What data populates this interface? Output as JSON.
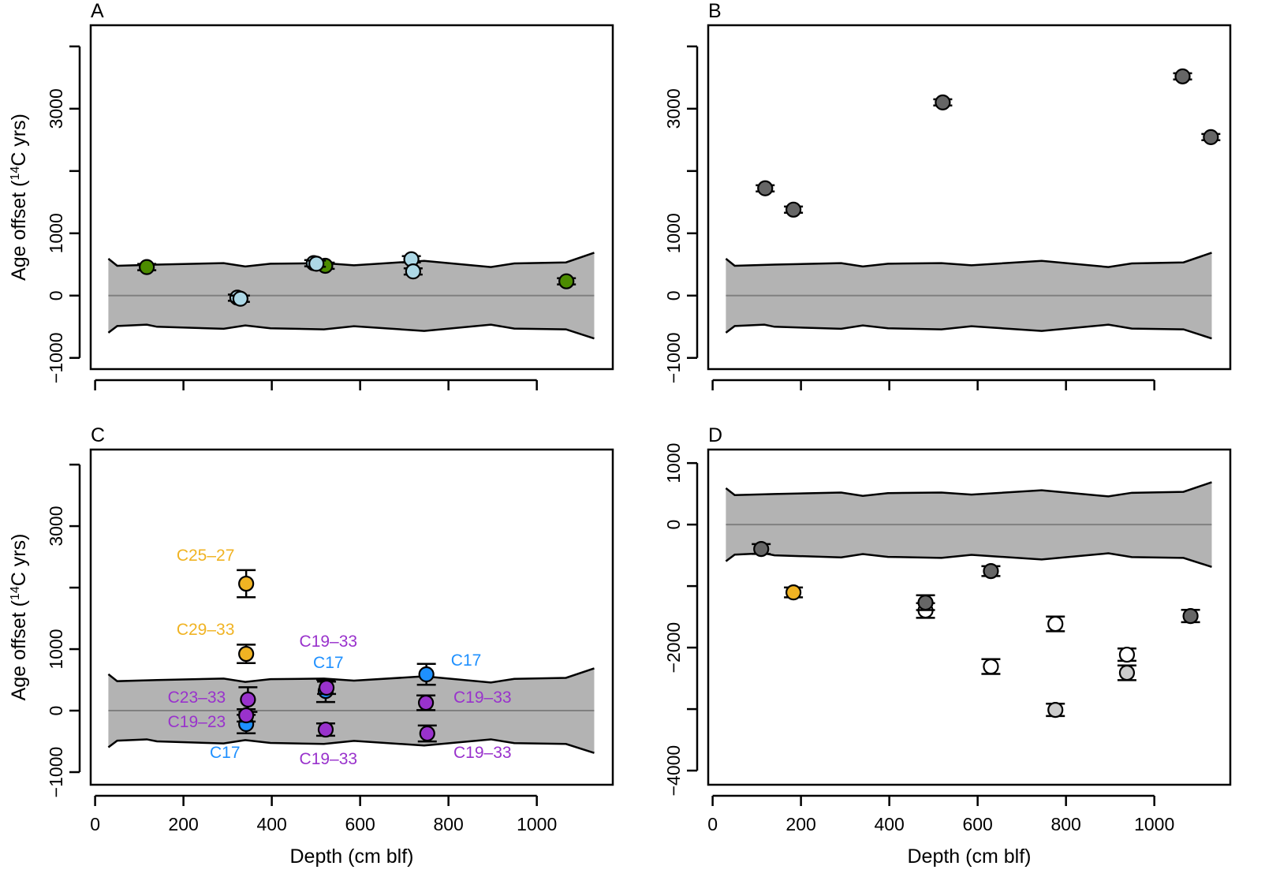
{
  "common": {
    "xlabel": "Depth (cm blf)",
    "ylabel_pre": "Age offset (",
    "ylabel_sup": "14",
    "ylabel_post": "C yrs)",
    "band_fill": "#b3b3b3",
    "zero_line_color": "#808080"
  },
  "reference_band": {
    "depth": [
      30,
      50,
      117,
      140,
      291,
      340,
      397,
      518,
      586,
      745,
      896,
      949,
      1066,
      1130
    ],
    "upper": [
      592,
      479,
      492,
      497,
      521,
      467,
      512,
      521,
      487,
      558,
      458,
      517,
      533,
      688
    ],
    "lower": [
      -596,
      -488,
      -467,
      -500,
      -533,
      -479,
      -525,
      -542,
      -492,
      -567,
      -467,
      -529,
      -542,
      -688
    ]
  },
  "chart_data": [
    {
      "panel": "A",
      "type": "scatter",
      "xlim": [
        -10,
        1172
      ],
      "ylim": [
        -1180,
        4340
      ],
      "xticks": [
        0,
        200,
        400,
        600,
        800,
        1000
      ],
      "xtick_labels": false,
      "yticks": [
        -1000,
        0,
        1000,
        2000,
        3000,
        4000
      ],
      "ytick_labels": {
        "-1000": "−1000",
        "0": "0",
        "1000": "1000",
        "3000": "3000"
      },
      "points": [
        {
          "depth": 117,
          "offset": 458,
          "err": 50,
          "color": "#4c8c00"
        },
        {
          "depth": 322,
          "offset": -33,
          "err": 50,
          "color": "#add8e6"
        },
        {
          "depth": 329,
          "offset": -50,
          "err": 50,
          "color": "#add8e6"
        },
        {
          "depth": 495,
          "offset": 521,
          "err": 50,
          "color": "#add8e6"
        },
        {
          "depth": 521,
          "offset": 479,
          "err": 50,
          "color": "#4c8c00"
        },
        {
          "depth": 501,
          "offset": 512,
          "err": 50,
          "color": "#add8e6"
        },
        {
          "depth": 716,
          "offset": 583,
          "err": 50,
          "color": "#add8e6"
        },
        {
          "depth": 720,
          "offset": 388,
          "err": 50,
          "color": "#add8e6"
        },
        {
          "depth": 1067,
          "offset": 229,
          "err": 50,
          "color": "#4c8c00"
        }
      ],
      "annotations": []
    },
    {
      "panel": "B",
      "type": "scatter",
      "xlim": [
        -10,
        1172
      ],
      "ylim": [
        -1180,
        4340
      ],
      "xticks": [
        0,
        200,
        400,
        600,
        800,
        1000
      ],
      "xtick_labels": false,
      "yticks": [
        -1000,
        0,
        1000,
        2000,
        3000,
        4000
      ],
      "ytick_labels": {
        "-1000": "−1000",
        "0": "0",
        "1000": "1000",
        "3000": "3000"
      },
      "points": [
        {
          "depth": 119,
          "offset": 1722,
          "err": 50,
          "color": "#666666"
        },
        {
          "depth": 183,
          "offset": 1380,
          "err": 50,
          "color": "#666666"
        },
        {
          "depth": 521,
          "offset": 3101,
          "err": 50,
          "color": "#666666"
        },
        {
          "depth": 1064,
          "offset": 3519,
          "err": 50,
          "color": "#666666"
        },
        {
          "depth": 1128,
          "offset": 2544,
          "err": 50,
          "color": "#666666"
        }
      ],
      "annotations": []
    },
    {
      "panel": "C",
      "type": "scatter",
      "xlim": [
        -10,
        1172
      ],
      "ylim": [
        -1205,
        4245
      ],
      "xticks": [
        0,
        200,
        400,
        600,
        800,
        1000
      ],
      "xtick_labels": true,
      "yticks": [
        -1000,
        0,
        1000,
        2000,
        3000,
        4000
      ],
      "ytick_labels": {
        "-1000": "−1000",
        "0": "0",
        "1000": "1000",
        "3000": "3000"
      },
      "points": [
        {
          "depth": 342,
          "offset": 2064,
          "err": 220,
          "color": "#f0b323"
        },
        {
          "depth": 342,
          "offset": 923,
          "err": 150,
          "color": "#f0b323"
        },
        {
          "depth": 342,
          "offset": -218,
          "err": 150,
          "color": "#1e90ff"
        },
        {
          "depth": 346,
          "offset": 180,
          "err": 200,
          "color": "#9932cc"
        },
        {
          "depth": 342,
          "offset": -77,
          "err": 100,
          "color": "#9932cc"
        },
        {
          "depth": 522,
          "offset": 320,
          "err": 180,
          "color": "#1e90ff"
        },
        {
          "depth": 524,
          "offset": 372,
          "err": 100,
          "color": "#9932cc"
        },
        {
          "depth": 522,
          "offset": -308,
          "err": 100,
          "color": "#9932cc"
        },
        {
          "depth": 750,
          "offset": 590,
          "err": 170,
          "color": "#1e90ff"
        },
        {
          "depth": 749,
          "offset": 128,
          "err": 120,
          "color": "#9932cc"
        },
        {
          "depth": 752,
          "offset": -372,
          "err": 130,
          "color": "#9932cc"
        }
      ],
      "annotations": [
        {
          "text": "C25–27",
          "depth": 250,
          "offset": 2538,
          "color": "#f0b323"
        },
        {
          "text": "C29–33",
          "depth": 250,
          "offset": 1333,
          "color": "#f0b323"
        },
        {
          "text": "C19–33",
          "depth": 528,
          "offset": 1141,
          "color": "#9932cc"
        },
        {
          "text": "C17",
          "depth": 528,
          "offset": 795,
          "color": "#1e90ff"
        },
        {
          "text": "C17",
          "depth": 840,
          "offset": 833,
          "color": "#1e90ff"
        },
        {
          "text": "C23–33",
          "depth": 230,
          "offset": 231,
          "color": "#9932cc"
        },
        {
          "text": "C19–33",
          "depth": 877,
          "offset": 231,
          "color": "#9932cc"
        },
        {
          "text": "C19–23",
          "depth": 230,
          "offset": -167,
          "color": "#9932cc"
        },
        {
          "text": "C17",
          "depth": 294,
          "offset": -667,
          "color": "#1e90ff"
        },
        {
          "text": "C19–33",
          "depth": 528,
          "offset": -769,
          "color": "#9932cc"
        },
        {
          "text": "C19–33",
          "depth": 877,
          "offset": -667,
          "color": "#9932cc"
        }
      ]
    },
    {
      "panel": "D",
      "type": "scatter",
      "xlim": [
        -10,
        1172
      ],
      "ylim": [
        -4230,
        1220
      ],
      "xticks": [
        0,
        200,
        400,
        600,
        800,
        1000
      ],
      "xtick_labels": true,
      "yticks": [
        -4000,
        -3000,
        -2000,
        -1000,
        0,
        1000
      ],
      "ytick_labels": {
        "-4000": "−4000",
        "-2000": "−2000",
        "0": "0",
        "1000": "1000"
      },
      "points": [
        {
          "depth": 110,
          "offset": -397,
          "err": 80,
          "color": "#666666"
        },
        {
          "depth": 183,
          "offset": -1103,
          "err": 80,
          "color": "#f0b323"
        },
        {
          "depth": 482,
          "offset": -1397,
          "err": 120,
          "color": "#ffffff"
        },
        {
          "depth": 482,
          "offset": -1269,
          "err": 120,
          "color": "#666666"
        },
        {
          "depth": 630,
          "offset": -756,
          "err": 80,
          "color": "#666666"
        },
        {
          "depth": 630,
          "offset": -2308,
          "err": 120,
          "color": "#ffffff"
        },
        {
          "depth": 776,
          "offset": -1615,
          "err": 120,
          "color": "#ffffff"
        },
        {
          "depth": 776,
          "offset": -3013,
          "err": 100,
          "color": "#cccccc"
        },
        {
          "depth": 938,
          "offset": -2115,
          "err": 100,
          "color": "#ffffff"
        },
        {
          "depth": 938,
          "offset": -2410,
          "err": 120,
          "color": "#cccccc"
        },
        {
          "depth": 1082,
          "offset": -1487,
          "err": 100,
          "color": "#666666"
        }
      ],
      "annotations": []
    }
  ]
}
